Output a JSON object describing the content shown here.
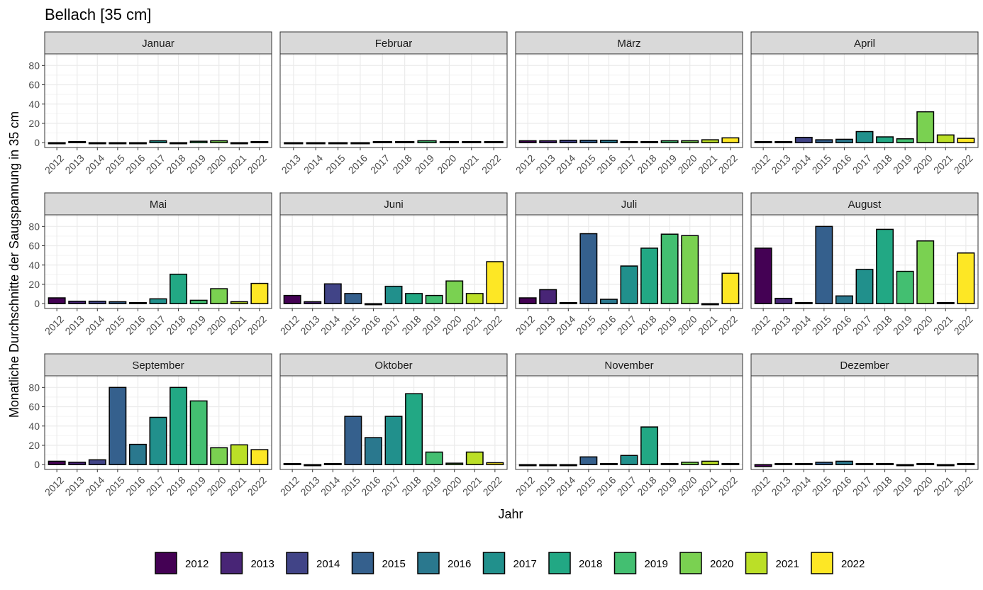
{
  "chart_data": {
    "type": "bar",
    "title": "Bellach [35 cm]",
    "xlabel": "Jahr",
    "ylabel": "Monatliche Durchschnitte der Saugspannung in 35 cm",
    "ylim": [
      -5,
      92
    ],
    "yticks": [
      0,
      20,
      40,
      60,
      80
    ],
    "grid": true,
    "legend_position": "bottom",
    "years": [
      "2012",
      "2013",
      "2014",
      "2015",
      "2016",
      "2017",
      "2018",
      "2019",
      "2020",
      "2021",
      "2022"
    ],
    "colors": {
      "2012": "#440154",
      "2013": "#482576",
      "2014": "#414487",
      "2015": "#35608D",
      "2016": "#2A788E",
      "2017": "#21908C",
      "2018": "#22A884",
      "2019": "#43BF71",
      "2020": "#7AD151",
      "2021": "#BBDF27",
      "2022": "#FDE725"
    },
    "panels": [
      {
        "month": "Januar",
        "years": [
          "2012",
          "2013",
          "2014",
          "2015",
          "2016",
          "2017",
          "2018",
          "2019",
          "2020",
          "2021",
          "2022"
        ],
        "values": [
          -1,
          0.5,
          -0.5,
          -1,
          -0.5,
          2,
          -1,
          1.5,
          2,
          -0.3,
          0.8
        ]
      },
      {
        "month": "Februar",
        "years": [
          "2013",
          "2014",
          "2015",
          "2016",
          "2017",
          "2018",
          "2019",
          "2020",
          "2021",
          "2022"
        ],
        "values": [
          -0.3,
          -1,
          -0.3,
          -1,
          0.3,
          0.8,
          2,
          0.3,
          0.8,
          0.2
        ]
      },
      {
        "month": "März",
        "years": [
          "2012",
          "2013",
          "2014",
          "2015",
          "2016",
          "2017",
          "2018",
          "2019",
          "2020",
          "2021",
          "2022"
        ],
        "values": [
          2,
          2,
          2.5,
          2.5,
          2.5,
          1,
          1,
          2,
          2,
          3,
          5
        ]
      },
      {
        "month": "April",
        "years": [
          "2012",
          "2013",
          "2014",
          "2015",
          "2016",
          "2017",
          "2018",
          "2019",
          "2020",
          "2021",
          "2022"
        ],
        "values": [
          1,
          0.3,
          5.5,
          3,
          3.5,
          11.5,
          6,
          4,
          32,
          8,
          4.5
        ]
      },
      {
        "month": "Mai",
        "years": [
          "2012",
          "2013",
          "2014",
          "2015",
          "2016",
          "2017",
          "2018",
          "2019",
          "2020",
          "2021",
          "2022"
        ],
        "values": [
          6,
          2.5,
          2.5,
          2,
          0.5,
          5,
          30.5,
          3.5,
          15.5,
          2,
          21
        ]
      },
      {
        "month": "Juni",
        "years": [
          "2012",
          "2013",
          "2014",
          "2015",
          "2016",
          "2017",
          "2018",
          "2019",
          "2020",
          "2021",
          "2022"
        ],
        "values": [
          8.5,
          2,
          20.5,
          10.5,
          -0.5,
          18,
          10.5,
          8.5,
          23.5,
          10.5,
          43.5
        ]
      },
      {
        "month": "Juli",
        "years": [
          "2012",
          "2013",
          "2014",
          "2015",
          "2016",
          "2017",
          "2018",
          "2019",
          "2020",
          "2021",
          "2022"
        ],
        "values": [
          6,
          14.5,
          0,
          72.5,
          4.5,
          39,
          57.5,
          72,
          70.5,
          -0.5,
          31.5
        ]
      },
      {
        "month": "August",
        "years": [
          "2012",
          "2013",
          "2014",
          "2015",
          "2016",
          "2017",
          "2018",
          "2019",
          "2020",
          "2021",
          "2022"
        ],
        "values": [
          57.5,
          5.5,
          1,
          80,
          8,
          35.5,
          77,
          33.5,
          65,
          0.3,
          52.5
        ]
      },
      {
        "month": "September",
        "years": [
          "2012",
          "2013",
          "2014",
          "2015",
          "2016",
          "2017",
          "2018",
          "2019",
          "2020",
          "2021",
          "2022"
        ],
        "values": [
          3.5,
          2.5,
          5,
          80,
          21,
          49,
          80,
          66,
          17.5,
          20.5,
          15.5
        ]
      },
      {
        "month": "Oktober",
        "years": [
          "2012",
          "2013",
          "2014",
          "2015",
          "2016",
          "2017",
          "2018",
          "2019",
          "2020",
          "2021",
          "2022"
        ],
        "values": [
          0.5,
          -0.3,
          1,
          50,
          28,
          50,
          73.5,
          13,
          1.5,
          13,
          2
        ]
      },
      {
        "month": "November",
        "years": [
          "2012",
          "2013",
          "2014",
          "2015",
          "2016",
          "2017",
          "2018",
          "2019",
          "2020",
          "2021",
          "2022"
        ],
        "values": [
          -0.3,
          -0.5,
          -0.3,
          8,
          0.3,
          9.5,
          39,
          1,
          2.5,
          3.5,
          1
        ]
      },
      {
        "month": "Dezember",
        "years": [
          "2012",
          "2013",
          "2014",
          "2015",
          "2016",
          "2017",
          "2018",
          "2019",
          "2020",
          "2021",
          "2022"
        ],
        "values": [
          -2,
          0.5,
          1,
          2.5,
          3.5,
          0.2,
          1,
          -0.2,
          0.5,
          -0.5,
          0.8
        ]
      }
    ]
  }
}
